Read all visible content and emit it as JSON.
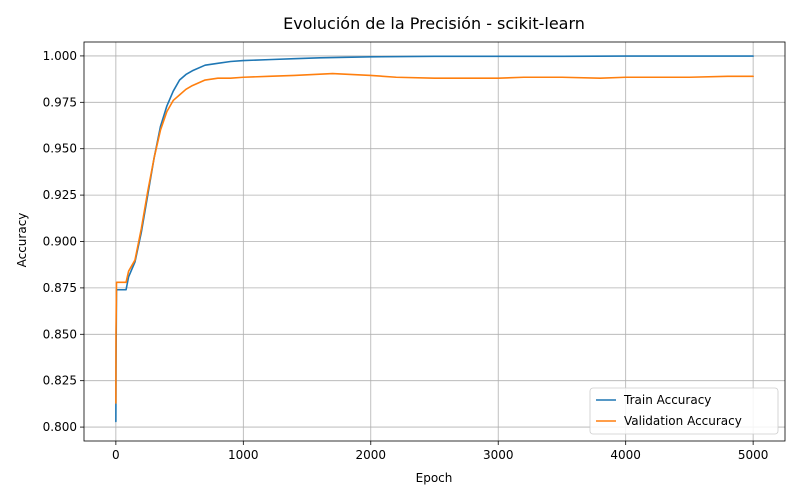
{
  "chart_data": {
    "type": "line",
    "title": "Evolución de la Precisión - scikit-learn",
    "xlabel": "Epoch",
    "ylabel": "Accuracy",
    "xlim": [
      -250,
      5250
    ],
    "ylim": [
      0.7925,
      1.0075
    ],
    "xticks": [
      0,
      1000,
      2000,
      3000,
      4000,
      5000
    ],
    "xtick_labels": [
      "0",
      "1000",
      "2000",
      "3000",
      "4000",
      "5000"
    ],
    "yticks": [
      0.8,
      0.825,
      0.85,
      0.875,
      0.9,
      0.925,
      0.95,
      0.975,
      1.0
    ],
    "ytick_labels": [
      "0.800",
      "0.825",
      "0.850",
      "0.875",
      "0.900",
      "0.925",
      "0.950",
      "0.975",
      "1.000"
    ],
    "grid": true,
    "legend_position": "lower-right",
    "series": [
      {
        "name": "Train Accuracy",
        "color": "#1f77b4",
        "x": [
          0,
          1,
          5,
          80,
          100,
          150,
          200,
          250,
          300,
          350,
          400,
          450,
          500,
          550,
          600,
          700,
          800,
          900,
          1000,
          1200,
          1400,
          1600,
          2000,
          2500,
          3000,
          3500,
          4000,
          4500,
          5000
        ],
        "y": [
          0.803,
          0.83,
          0.874,
          0.874,
          0.881,
          0.889,
          0.905,
          0.925,
          0.945,
          0.962,
          0.973,
          0.981,
          0.987,
          0.99,
          0.992,
          0.995,
          0.996,
          0.997,
          0.9975,
          0.998,
          0.9985,
          0.999,
          0.9995,
          0.9998,
          0.9998,
          0.9998,
          0.9999,
          0.9999,
          0.9999
        ]
      },
      {
        "name": "Validation Accuracy",
        "color": "#ff7f0e",
        "x": [
          0,
          1,
          5,
          80,
          100,
          150,
          200,
          250,
          300,
          350,
          400,
          450,
          500,
          550,
          600,
          700,
          800,
          900,
          1000,
          1200,
          1400,
          1700,
          2000,
          2200,
          2500,
          2700,
          3000,
          3200,
          3500,
          3800,
          4000,
          4200,
          4500,
          4800,
          5000
        ],
        "y": [
          0.813,
          0.85,
          0.878,
          0.878,
          0.884,
          0.89,
          0.907,
          0.927,
          0.945,
          0.96,
          0.97,
          0.976,
          0.979,
          0.982,
          0.984,
          0.987,
          0.988,
          0.988,
          0.9885,
          0.989,
          0.9895,
          0.9905,
          0.9895,
          0.9885,
          0.988,
          0.988,
          0.988,
          0.9885,
          0.9885,
          0.988,
          0.9885,
          0.9885,
          0.9885,
          0.989,
          0.989
        ]
      }
    ]
  }
}
